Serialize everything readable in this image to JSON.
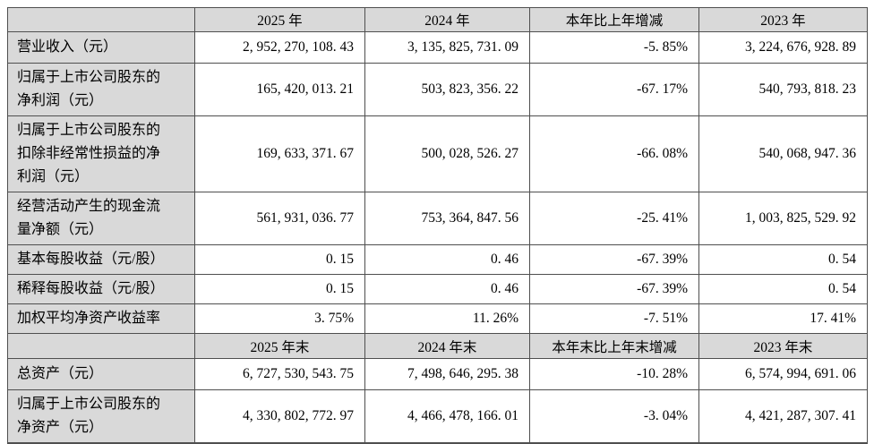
{
  "style": {
    "header_bg": "#d9d9d9",
    "label_bg": "#d9d9d9",
    "border_color": "#4f4f4f",
    "text_color": "#000000",
    "page_bg": "#ffffff"
  },
  "table": {
    "section1": {
      "headers": {
        "blank": "",
        "y2025": "2025 年",
        "y2024": "2024 年",
        "change": "本年比上年增减",
        "y2023": "2023 年"
      },
      "rows": [
        {
          "label": "营业收入（元）",
          "y2025": "2, 952, 270, 108. 43",
          "y2024": "3, 135, 825, 731. 09",
          "change": "-5. 85%",
          "y2023": "3, 224, 676, 928. 89"
        },
        {
          "label": "归属于上市公司股东的净利润（元）",
          "y2025": "165, 420, 013. 21",
          "y2024": "503, 823, 356. 22",
          "change": "-67. 17%",
          "y2023": "540, 793, 818. 23"
        },
        {
          "label": "归属于上市公司股东的扣除非经常性损益的净利润（元）",
          "y2025": "169, 633, 371. 67",
          "y2024": "500, 028, 526. 27",
          "change": "-66. 08%",
          "y2023": "540, 068, 947. 36"
        },
        {
          "label": "经营活动产生的现金流量净额（元）",
          "y2025": "561, 931, 036. 77",
          "y2024": "753, 364, 847. 56",
          "change": "-25. 41%",
          "y2023": "1, 003, 825, 529. 92"
        },
        {
          "label": "基本每股收益（元/股）",
          "y2025": "0. 15",
          "y2024": "0. 46",
          "change": "-67. 39%",
          "y2023": "0. 54"
        },
        {
          "label": "稀释每股收益（元/股）",
          "y2025": "0. 15",
          "y2024": "0. 46",
          "change": "-67. 39%",
          "y2023": "0. 54"
        },
        {
          "label": "加权平均净资产收益率",
          "y2025": "3. 75%",
          "y2024": "11. 26%",
          "change": "-7. 51%",
          "y2023": "17. 41%"
        }
      ]
    },
    "section2": {
      "headers": {
        "blank": "",
        "y2025": "2025 年末",
        "y2024": "2024 年末",
        "change": "本年末比上年末增减",
        "y2023": "2023 年末"
      },
      "rows": [
        {
          "label": "总资产（元）",
          "y2025": "6, 727, 530, 543. 75",
          "y2024": "7, 498, 646, 295. 38",
          "change": "-10. 28%",
          "y2023": "6, 574, 994, 691. 06"
        },
        {
          "label": "归属于上市公司股东的净资产（元）",
          "y2025": "4, 330, 802, 772. 97",
          "y2024": "4, 466, 478, 166. 01",
          "change": "-3. 04%",
          "y2023": "4, 421, 287, 307. 41"
        }
      ]
    }
  }
}
